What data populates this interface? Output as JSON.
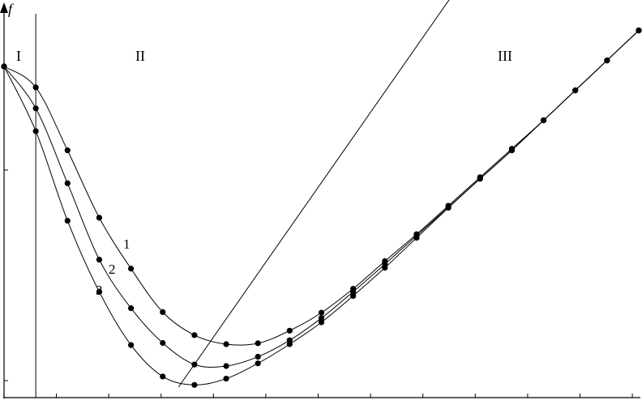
{
  "chart_data": {
    "type": "line",
    "title": "",
    "xlabel": "",
    "ylabel": "f",
    "xlim": [
      0,
      20
    ],
    "ylim": [
      0,
      110
    ],
    "grid": false,
    "region_labels": [
      "I",
      "II",
      "III"
    ],
    "region_boundary_x": 1,
    "series": [
      {
        "name": "1",
        "x": [
          0,
          1,
          2,
          3,
          4,
          5,
          6,
          7,
          8,
          9,
          10,
          11,
          12,
          13,
          14,
          15,
          16,
          17,
          18,
          19,
          20
        ],
        "y": [
          105,
          98,
          77,
          54.5,
          37.5,
          23,
          15.3,
          12.3,
          12.6,
          16.8,
          22.8,
          30.8,
          40,
          49,
          58.5,
          68,
          77.5,
          87,
          97,
          107,
          117
        ]
      },
      {
        "name": "2",
        "x": [
          0,
          1,
          2,
          3,
          4,
          5,
          6,
          7,
          8,
          9,
          10,
          11,
          12,
          13,
          14,
          15,
          16,
          17,
          18,
          19,
          20
        ],
        "y": [
          105,
          91,
          66,
          40.5,
          24.3,
          12.7,
          5.5,
          5,
          8.1,
          13.6,
          21,
          29.8,
          39,
          48.5,
          58,
          67.5,
          77,
          87,
          97,
          107,
          117
        ]
      },
      {
        "name": "3",
        "x": [
          0,
          1,
          2,
          3,
          4,
          5,
          6,
          7,
          8,
          9,
          10,
          11,
          12,
          13,
          14,
          15,
          16,
          17,
          18,
          19,
          20
        ],
        "y": [
          105,
          83.4,
          53.5,
          29.8,
          12,
          1.5,
          -1.3,
          0.8,
          5.9,
          12.3,
          19.6,
          28.4,
          37.8,
          47.8,
          57.8,
          67.5,
          77,
          87,
          97,
          107,
          117
        ]
      },
      {
        "name": "",
        "x": [
          5.5,
          15
        ],
        "y": [
          -2,
          142
        ]
      }
    ]
  }
}
